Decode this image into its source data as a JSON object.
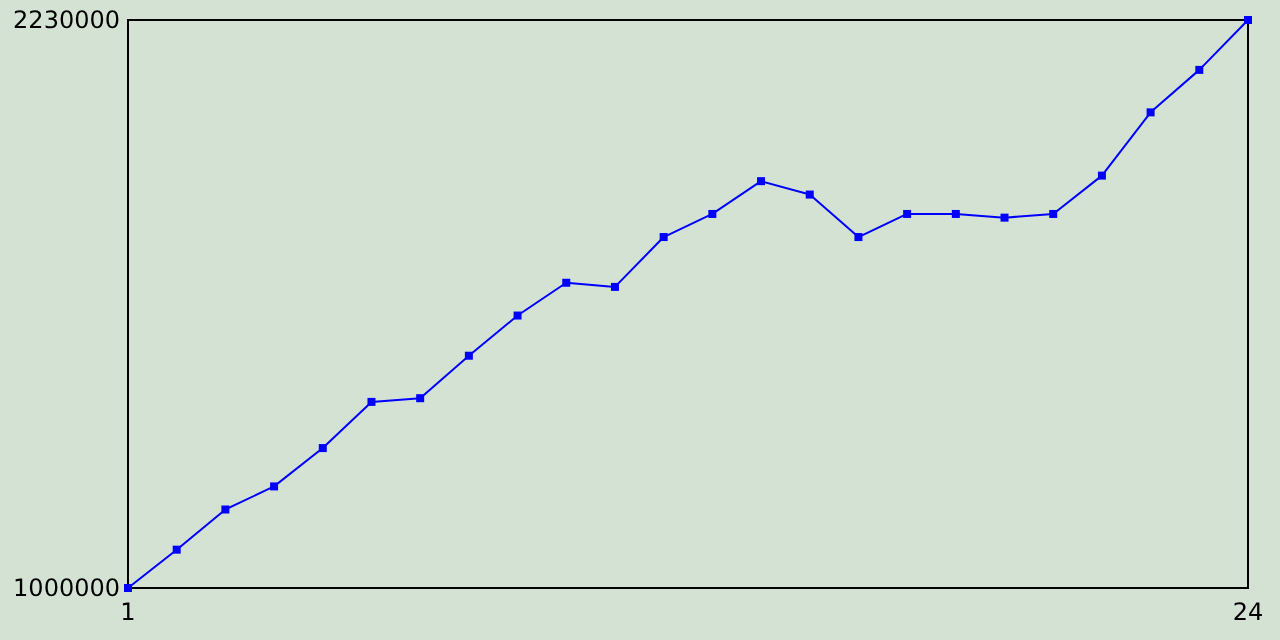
{
  "chart_data": {
    "type": "line",
    "x": [
      1,
      2,
      3,
      4,
      5,
      6,
      7,
      8,
      9,
      10,
      11,
      12,
      13,
      14,
      15,
      16,
      17,
      18,
      19,
      20,
      21,
      22,
      23,
      24
    ],
    "series": [
      {
        "color": "#0000ff",
        "values": [
          1000000,
          1083000,
          1170000,
          1220000,
          1303000,
          1403000,
          1411000,
          1503000,
          1590000,
          1661000,
          1652000,
          1760000,
          1810000,
          1881000,
          1852000,
          1760000,
          1810000,
          1810000,
          1802000,
          1810000,
          1893000,
          2030000,
          2122000,
          2230000
        ]
      }
    ],
    "xlim": [
      1,
      24
    ],
    "xticks": [
      1,
      24
    ],
    "ylim": [
      1000000,
      2230000
    ],
    "yticks": [
      1000000,
      2230000
    ],
    "grid": false,
    "marker": "square",
    "line_style": "solid"
  }
}
